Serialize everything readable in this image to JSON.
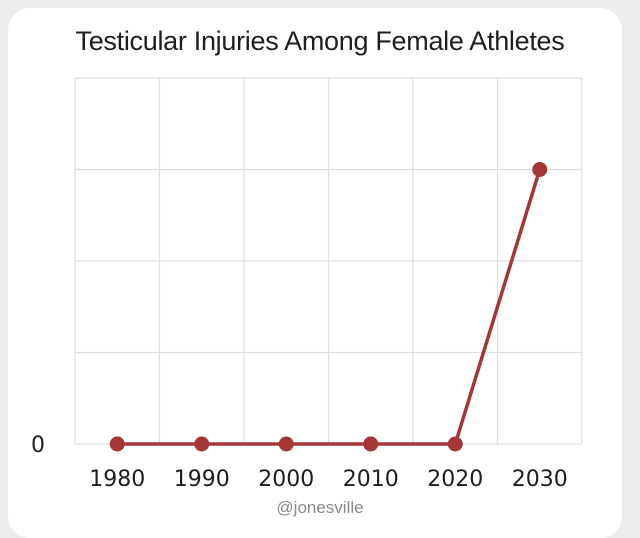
{
  "chart_data": {
    "type": "line",
    "title": "Testicular Injuries Among Female Athletes",
    "xlabel": "",
    "ylabel": "",
    "categories": [
      "1980",
      "1990",
      "2000",
      "2010",
      "2020",
      "2030"
    ],
    "y_tick_labels": [
      "0"
    ],
    "series": [
      {
        "values": [
          0,
          0,
          0,
          0,
          0,
          3.0
        ]
      }
    ],
    "ylim": [
      0,
      4
    ],
    "grid": true,
    "legend": "none",
    "colors": {
      "line": "#a63636",
      "grid": "#dedede"
    }
  },
  "watermark": "@jonesville"
}
